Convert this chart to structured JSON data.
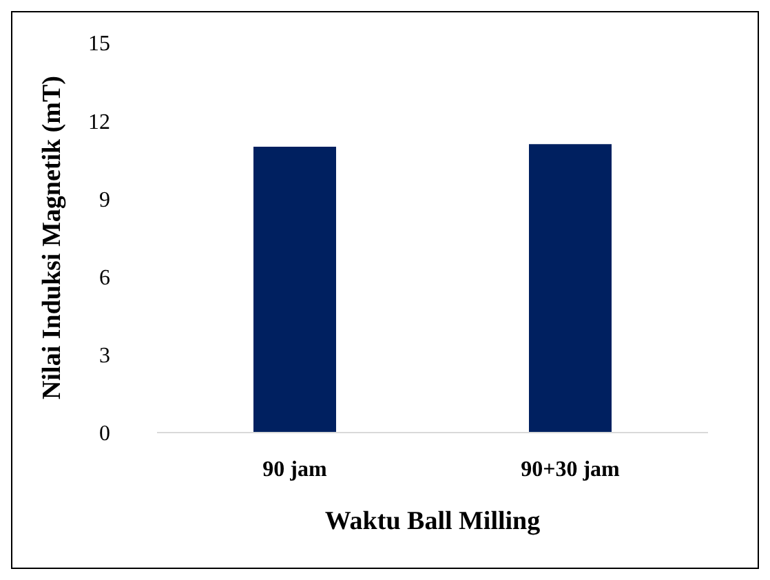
{
  "chart_data": {
    "type": "bar",
    "categories": [
      "90 jam",
      "90+30 jam"
    ],
    "values": [
      11.0,
      11.1
    ],
    "color": "#002060",
    "xlabel": "Waktu Ball Milling",
    "ylabel": "Nilai Induksi Magnetik (mT)",
    "ylim": [
      0,
      15
    ],
    "yticks": [
      0,
      3,
      6,
      9,
      12,
      15
    ],
    "grid": false,
    "legend": false
  }
}
